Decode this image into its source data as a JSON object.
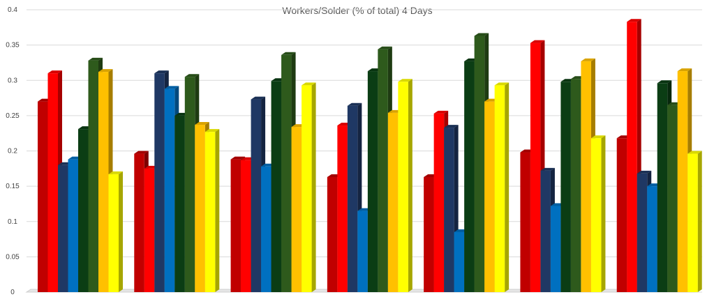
{
  "chart_data": {
    "type": "bar",
    "title": "Workers/Solder (% of total) 4 Days",
    "xlabel": "",
    "ylabel": "",
    "ylim": [
      0,
      0.4
    ],
    "yticks": [
      "0",
      "0.05",
      "0.1",
      "0.15",
      "0.2",
      "0.25",
      "0.3",
      "0.35",
      "0.4"
    ],
    "grid": true,
    "legend": "none",
    "style": "3d-clustered-column",
    "group_count": 7,
    "series": [
      {
        "color": "#c00000",
        "values": [
          0.27,
          0.196,
          0.188,
          0.163,
          0.163,
          0.198,
          0.218
        ]
      },
      {
        "color": "#ff0000",
        "values": [
          0.31,
          0.175,
          0.187,
          0.236,
          0.253,
          0.353,
          0.383
        ]
      },
      {
        "color": "#1f3864",
        "values": [
          0.18,
          0.31,
          0.273,
          0.264,
          0.233,
          0.172,
          0.168
        ]
      },
      {
        "color": "#0070c0",
        "values": [
          0.188,
          0.288,
          0.178,
          0.115,
          0.085,
          0.122,
          0.15
        ]
      },
      {
        "color": "#0b3d14",
        "values": [
          0.231,
          0.25,
          0.299,
          0.313,
          0.327,
          0.298,
          0.296
        ]
      },
      {
        "color": "#2e5a1c",
        "values": [
          0.328,
          0.305,
          0.336,
          0.344,
          0.363,
          0.302,
          0.265
        ]
      },
      {
        "color": "#ffc000",
        "values": [
          0.312,
          0.237,
          0.234,
          0.254,
          0.27,
          0.327,
          0.313
        ]
      },
      {
        "color": "#ffff00",
        "values": [
          0.167,
          0.227,
          0.293,
          0.298,
          0.293,
          0.218,
          0.196
        ]
      }
    ]
  }
}
